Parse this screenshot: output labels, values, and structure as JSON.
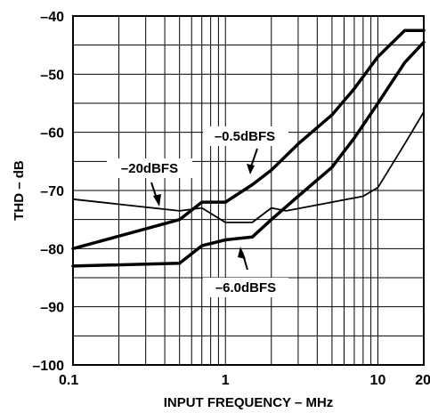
{
  "chart_data": {
    "type": "line",
    "xlabel": "INPUT FREQUENCY – MHz",
    "ylabel": "THD – dB",
    "xscale": "log",
    "xlim": [
      0.1,
      20
    ],
    "ylim": [
      -100,
      -40
    ],
    "grid": true,
    "x_tick_labels": [
      {
        "value": 0.1,
        "label": "0.1"
      },
      {
        "value": 1,
        "label": "1"
      },
      {
        "value": 10,
        "label": "10"
      },
      {
        "value": 20,
        "label": "20"
      }
    ],
    "y_tick_labels": [
      {
        "value": -40,
        "label": "–40"
      },
      {
        "value": -50,
        "label": "–50"
      },
      {
        "value": -60,
        "label": "–60"
      },
      {
        "value": -70,
        "label": "–70"
      },
      {
        "value": -80,
        "label": "–80"
      },
      {
        "value": -90,
        "label": "–90"
      },
      {
        "value": -100,
        "label": "–100"
      }
    ],
    "series": [
      {
        "name": "–0.5dBFS",
        "x": [
          0.1,
          0.5,
          0.7,
          1.0,
          1.5,
          2,
          3,
          5,
          7,
          10,
          15,
          20
        ],
        "y": [
          -80.0,
          -75.0,
          -72.0,
          -72.0,
          -69.0,
          -66.5,
          -62.0,
          -57.0,
          -52.5,
          -47.0,
          -42.5,
          -42.5
        ]
      },
      {
        "name": "–6.0dBFS",
        "x": [
          0.1,
          0.5,
          0.7,
          1.0,
          1.5,
          2,
          3,
          5,
          7,
          10,
          15,
          20
        ],
        "y": [
          -83.0,
          -82.5,
          -79.5,
          -78.5,
          -78.0,
          -75.0,
          -71.0,
          -66.0,
          -61.0,
          -55.0,
          -48.0,
          -44.5
        ]
      },
      {
        "name": "–20dBFS",
        "x": [
          0.1,
          0.5,
          0.7,
          1.0,
          1.5,
          2,
          2.5,
          5,
          8,
          10,
          15,
          20
        ],
        "y": [
          -71.5,
          -73.5,
          -73.0,
          -75.5,
          -75.5,
          -73.0,
          -73.5,
          -72.0,
          -71.0,
          -69.5,
          -62.0,
          -56.5
        ]
      }
    ],
    "annotations": [
      {
        "text": "–0.5dBFS",
        "series": "–0.5dBFS"
      },
      {
        "text": "–20dBFS",
        "series": "–20dBFS"
      },
      {
        "text": "–6.0dBFS",
        "series": "–6.0dBFS"
      }
    ]
  }
}
